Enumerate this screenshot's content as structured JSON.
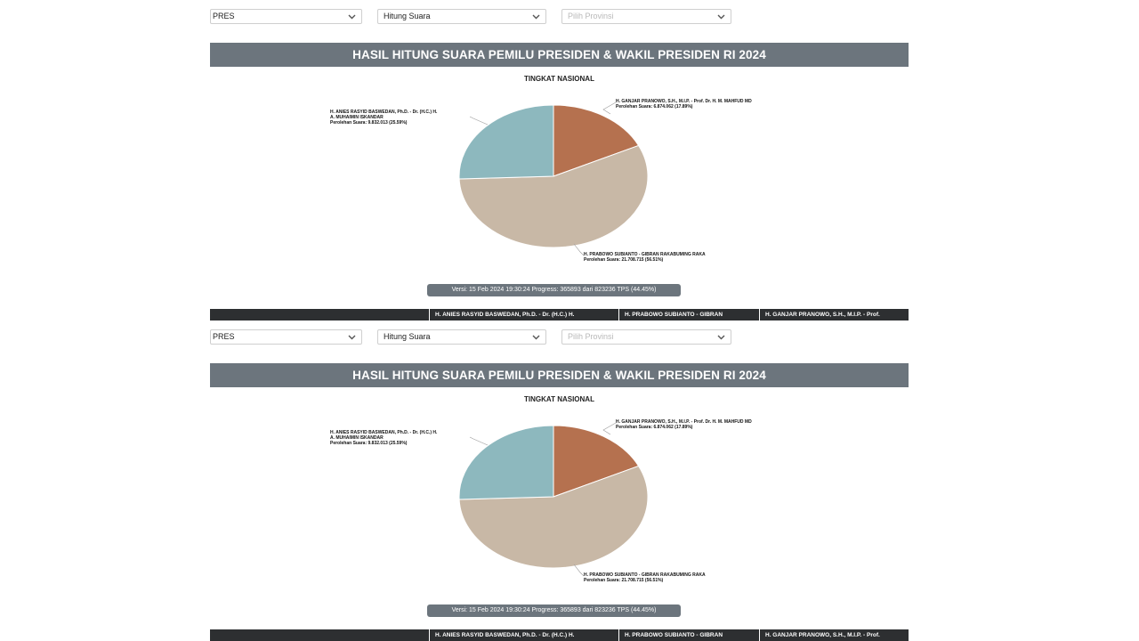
{
  "filters": {
    "election_type": "PRES",
    "mode": "Hitung Suara",
    "province_placeholder": "Pilih Provinsi"
  },
  "title": "HASIL HITUNG SUARA PEMILU PRESIDEN & WAKIL PRESIDEN RI 2024",
  "level": "TINGKAT NASIONAL",
  "candidates": [
    {
      "name_line1": "H. ANIES RASYID BASWEDAN, Ph.D. - Dr. (H.C.) H.",
      "name_line2": "A. MUHAIMIN ISKANDAR",
      "votes_text": "Perolehan Suara: 9.832.013 (25.59%)",
      "color": "#8db8be"
    },
    {
      "name_line1": "H. GANJAR PRANOWO, S.H., M.I.P. - Prof. Dr. H. M. MAHFUD MD",
      "votes_text": "Perolehan Suara: 6.874.062 (17.89%)",
      "color": "#b5714f"
    },
    {
      "name_line1": "H. PRABOWO SUBIANTO - GIBRAN RAKABUMING RAKA",
      "votes_text": "Perolehan Suara: 21.708.715 (56.51%)",
      "color": "#c8b8a6"
    }
  ],
  "chart_data": {
    "type": "pie",
    "title": "TINGKAT NASIONAL",
    "slices": [
      {
        "label": "H. GANJAR PRANOWO, S.H., M.I.P. - Prof. Dr. H. M. MAHFUD MD",
        "value": 6874062,
        "percent": 17.89,
        "color": "#b5714f"
      },
      {
        "label": "H. PRABOWO SUBIANTO - GIBRAN RAKABUMING RAKA",
        "value": 21708715,
        "percent": 56.51,
        "color": "#c8b8a6"
      },
      {
        "label": "H. ANIES RASYID BASWEDAN, Ph.D. - Dr. (H.C.) H. A. MUHAIMIN ISKANDAR",
        "value": 9832013,
        "percent": 25.59,
        "color": "#8db8be"
      }
    ]
  },
  "version_text": "Versi: 15 Feb 2024 19:30:24 Progress: 365893 dari 823236 TPS (44.45%)",
  "table_headers": [
    "H. ANIES RASYID BASWEDAN, Ph.D. - Dr. (H.C.) H.",
    "H. PRABOWO SUBIANTO - GIBRAN",
    "H. GANJAR PRANOWO, S.H., M.I.P. - Prof."
  ]
}
